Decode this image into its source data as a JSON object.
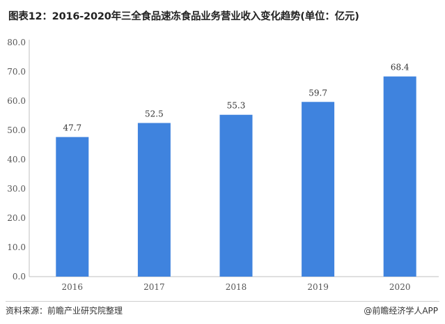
{
  "title": "图表12：2016-2020年三全食品速冻食品业务营业收入变化趋势(单位：亿元)",
  "source": "资料来源：前瞻产业研究院整理",
  "brand": "@前瞻经济学人APP",
  "colors": {
    "bar": "#3f83de",
    "grid": "#bfbfbf"
  },
  "chart_data": {
    "type": "bar",
    "categories": [
      "2016",
      "2017",
      "2018",
      "2019",
      "2020"
    ],
    "values": [
      47.7,
      52.5,
      55.3,
      59.7,
      68.4
    ],
    "data_labels": [
      "47.7",
      "52.5",
      "55.3",
      "59.7",
      "68.4"
    ],
    "yticks": [
      "0.0",
      "10.0",
      "20.0",
      "30.0",
      "40.0",
      "50.0",
      "60.0",
      "70.0",
      "80.0"
    ],
    "ylim": [
      0,
      80
    ],
    "grid": false,
    "legend": "none"
  }
}
